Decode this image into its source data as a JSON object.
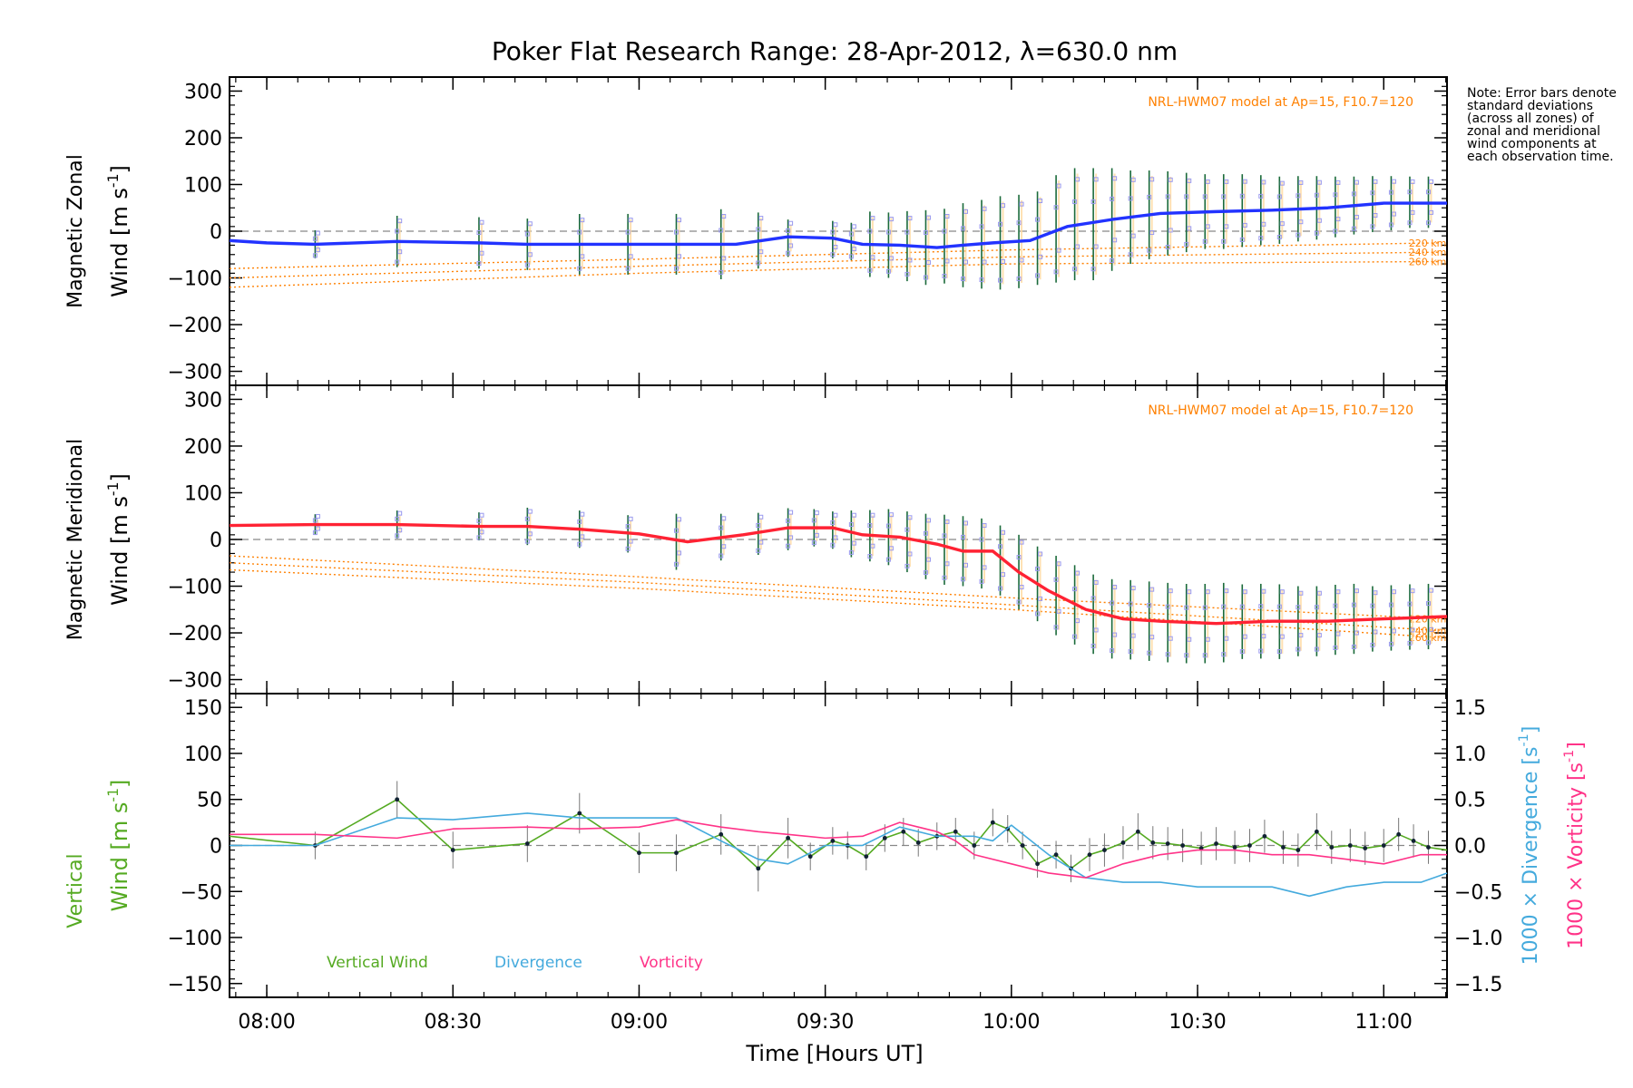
{
  "title": "Poker Flat Research Range: 28-Apr-2012, λ=630.0 nm",
  "note": "Note: Error bars denote standard deviations (across all zones) of zonal and meridional wind components at each observation time.",
  "xlabel": "Time [Hours UT]",
  "colors": {
    "zonal": "#2233ff",
    "meridional": "#ff2233",
    "model": "#ff8000",
    "vertical": "#55aa22",
    "divergence": "#44aadd",
    "vorticity": "#ff3388",
    "errorbar": "#1a6a3a",
    "zones": "#9999ee",
    "zones_fill": "#ffd9a0",
    "zero": "#888888"
  },
  "chart_data": [
    {
      "type": "line",
      "name": "zonal",
      "ylabel1": "Magnetic Zonal",
      "ylabel2": "Wind [m s",
      "ylabel_sup": "-1",
      "ylabel_close": "]",
      "ylim": [
        -330,
        330
      ],
      "yticks": [
        -300,
        -200,
        -100,
        0,
        100,
        200,
        300
      ],
      "xticks": [
        "08:00",
        "08:30",
        "09:00",
        "09:30",
        "10:00",
        "10:30",
        "11:00"
      ],
      "xtick_hours": [
        8.0,
        8.5,
        9.0,
        9.5,
        10.0,
        10.5,
        11.0
      ],
      "xlim": [
        7.9,
        11.17
      ],
      "model_label": "NRL-HWM07 model at Ap=15, F10.7=120",
      "model_series": [
        {
          "label": "220 km",
          "x": [
            7.9,
            9.0,
            10.0,
            11.15
          ],
          "y": [
            -80,
            -60,
            -40,
            -25
          ]
        },
        {
          "label": "240 km",
          "x": [
            7.9,
            9.0,
            10.0,
            11.15
          ],
          "y": [
            -100,
            -75,
            -55,
            -45
          ]
        },
        {
          "label": "260 km",
          "x": [
            7.9,
            9.0,
            10.0,
            11.15
          ],
          "y": [
            -120,
            -90,
            -70,
            -65
          ]
        }
      ],
      "mean": {
        "x": [
          7.9,
          8.0,
          8.13,
          8.35,
          8.57,
          8.7,
          8.84,
          9.0,
          9.15,
          9.26,
          9.4,
          9.52,
          9.6,
          9.7,
          9.8,
          9.87,
          9.95,
          10.05,
          10.15,
          10.27,
          10.4,
          10.55,
          10.7,
          10.85,
          11.0,
          11.17
        ],
        "y": [
          -20,
          -25,
          -28,
          -22,
          -25,
          -28,
          -28,
          -28,
          -28,
          -28,
          -12,
          -15,
          -28,
          -30,
          -35,
          -30,
          -25,
          -20,
          10,
          25,
          38,
          42,
          45,
          50,
          60,
          60
        ]
      },
      "errorbars": {
        "x": [
          8.13,
          8.35,
          8.57,
          8.7,
          8.84,
          8.97,
          9.1,
          9.22,
          9.32,
          9.4,
          9.52,
          9.57,
          9.62,
          9.67,
          9.72,
          9.77,
          9.82,
          9.87,
          9.92,
          9.97,
          10.02,
          10.07,
          10.12,
          10.17,
          10.22,
          10.27,
          10.32,
          10.37,
          10.42,
          10.47,
          10.52,
          10.57,
          10.62,
          10.67,
          10.72,
          10.77,
          10.82,
          10.87,
          10.92,
          10.97,
          11.02,
          11.07,
          11.12
        ],
        "y": [
          -28,
          -22,
          -25,
          -28,
          -28,
          -28,
          -28,
          -28,
          -20,
          -15,
          -18,
          -22,
          -28,
          -30,
          -32,
          -35,
          -32,
          -30,
          -28,
          -25,
          -22,
          -15,
          5,
          15,
          15,
          25,
          30,
          35,
          38,
          40,
          42,
          42,
          44,
          45,
          45,
          48,
          50,
          52,
          55,
          58,
          60,
          62,
          62
        ],
        "err": [
          30,
          55,
          55,
          55,
          65,
          65,
          65,
          75,
          60,
          40,
          40,
          40,
          70,
          70,
          75,
          80,
          80,
          90,
          95,
          100,
          100,
          100,
          115,
          120,
          120,
          110,
          100,
          95,
          90,
          85,
          80,
          80,
          78,
          75,
          72,
          70,
          68,
          65,
          62,
          60,
          58,
          55,
          55
        ]
      }
    },
    {
      "type": "line",
      "name": "meridional",
      "ylabel1": "Magnetic Meridional",
      "ylabel2": "Wind [m s",
      "ylabel_sup": "-1",
      "ylabel_close": "]",
      "ylim": [
        -330,
        330
      ],
      "yticks": [
        -300,
        -200,
        -100,
        0,
        100,
        200,
        300
      ],
      "model_label": "NRL-HWM07 model at Ap=15, F10.7=120",
      "model_series": [
        {
          "label": "220 km",
          "x": [
            7.9,
            9.0,
            10.0,
            11.15
          ],
          "y": [
            -35,
            -80,
            -125,
            -170
          ]
        },
        {
          "label": "240 km",
          "x": [
            7.9,
            9.0,
            10.0,
            11.15
          ],
          "y": [
            -50,
            -92,
            -140,
            -195
          ]
        },
        {
          "label": "260 km",
          "x": [
            7.9,
            9.0,
            10.0,
            11.15
          ],
          "y": [
            -65,
            -105,
            -150,
            -210
          ]
        }
      ],
      "mean": {
        "x": [
          7.9,
          8.13,
          8.35,
          8.57,
          8.7,
          8.84,
          9.0,
          9.13,
          9.28,
          9.4,
          9.52,
          9.6,
          9.7,
          9.8,
          9.87,
          9.95,
          10.02,
          10.1,
          10.2,
          10.3,
          10.4,
          10.55,
          10.7,
          10.85,
          11.0,
          11.17
        ],
        "y": [
          30,
          32,
          32,
          28,
          28,
          22,
          12,
          -5,
          10,
          25,
          25,
          10,
          5,
          -10,
          -25,
          -25,
          -70,
          -110,
          -150,
          -170,
          -175,
          -180,
          -175,
          -175,
          -170,
          -165
        ]
      },
      "errorbars": {
        "x": [
          8.13,
          8.35,
          8.57,
          8.7,
          8.84,
          8.97,
          9.1,
          9.22,
          9.32,
          9.4,
          9.47,
          9.52,
          9.57,
          9.62,
          9.67,
          9.72,
          9.77,
          9.82,
          9.87,
          9.92,
          9.97,
          10.02,
          10.07,
          10.12,
          10.17,
          10.22,
          10.27,
          10.32,
          10.37,
          10.42,
          10.47,
          10.52,
          10.57,
          10.62,
          10.67,
          10.72,
          10.77,
          10.82,
          10.87,
          10.92,
          10.97,
          11.02,
          11.07,
          11.12
        ],
        "y": [
          32,
          32,
          28,
          28,
          22,
          12,
          -5,
          5,
          12,
          22,
          25,
          20,
          12,
          8,
          5,
          -5,
          -15,
          -22,
          -25,
          -30,
          -45,
          -70,
          -95,
          -120,
          -140,
          -160,
          -170,
          -172,
          -175,
          -178,
          -180,
          -180,
          -178,
          -176,
          -175,
          -176,
          -175,
          -175,
          -172,
          -170,
          -170,
          -168,
          -166,
          -165
        ],
        "err": [
          22,
          30,
          30,
          40,
          40,
          40,
          60,
          50,
          45,
          45,
          40,
          40,
          50,
          55,
          60,
          65,
          70,
          75,
          75,
          75,
          75,
          80,
          80,
          85,
          85,
          85,
          85,
          85,
          85,
          85,
          85,
          85,
          85,
          80,
          80,
          80,
          75,
          75,
          75,
          75,
          70,
          70,
          70,
          70
        ]
      }
    },
    {
      "type": "line",
      "name": "vertical",
      "ylabel1": "Vertical",
      "ylabel2": "Wind [m s",
      "ylabel_sup": "-1",
      "ylabel_close": "]",
      "ylim": [
        -165,
        165
      ],
      "yticks": [
        -150,
        -100,
        -50,
        0,
        50,
        100,
        150
      ],
      "y2lim": [
        -1.65,
        1.65
      ],
      "y2ticks": [
        -1.5,
        -1.0,
        -0.5,
        0.0,
        0.5,
        1.0,
        1.5
      ],
      "y2ticklabels": [
        "−1.5",
        "−1.0",
        "−0.5",
        "0.0",
        "0.5",
        "1.0",
        "1.5"
      ],
      "y2label_div": "1000 × Divergence [s",
      "y2label_vor": "1000 × Vorticity [s",
      "y2label_sup": "-1",
      "y2label_close": "]",
      "legend": [
        {
          "label": "Vertical Wind",
          "color_key": "vertical"
        },
        {
          "label": "Divergence",
          "color_key": "divergence"
        },
        {
          "label": "Vorticity",
          "color_key": "vorticity"
        }
      ],
      "series": [
        {
          "name": "Vertical Wind",
          "color_key": "vertical",
          "axis": "left",
          "x": [
            7.9,
            8.13,
            8.35,
            8.5,
            8.7,
            8.84,
            9.0,
            9.1,
            9.22,
            9.32,
            9.4,
            9.46,
            9.52,
            9.56,
            9.61,
            9.66,
            9.71,
            9.75,
            9.8,
            9.85,
            9.9,
            9.95,
            9.99,
            10.03,
            10.07,
            10.12,
            10.16,
            10.21,
            10.25,
            10.3,
            10.34,
            10.38,
            10.42,
            10.46,
            10.51,
            10.55,
            10.6,
            10.64,
            10.68,
            10.73,
            10.77,
            10.82,
            10.86,
            10.91,
            10.95,
            11.0,
            11.04,
            11.08,
            11.12,
            11.17
          ],
          "y": [
            10,
            0,
            50,
            -5,
            2,
            35,
            -8,
            -8,
            12,
            -25,
            8,
            -12,
            5,
            0,
            -12,
            8,
            15,
            3,
            10,
            15,
            0,
            25,
            18,
            0,
            -20,
            -10,
            -25,
            -10,
            -5,
            3,
            15,
            3,
            2,
            0,
            -3,
            2,
            -2,
            0,
            10,
            -2,
            -5,
            15,
            -2,
            0,
            -3,
            0,
            12,
            5,
            -2,
            -5
          ],
          "err": [
            0,
            15,
            20,
            20,
            20,
            22,
            22,
            20,
            22,
            25,
            22,
            15,
            15,
            15,
            15,
            15,
            15,
            15,
            15,
            15,
            15,
            15,
            15,
            15,
            15,
            15,
            15,
            18,
            18,
            18,
            20,
            18,
            18,
            18,
            18,
            18,
            18,
            18,
            18,
            18,
            18,
            20,
            18,
            18,
            18,
            18,
            18,
            18,
            18,
            0
          ]
        },
        {
          "name": "Divergence",
          "color_key": "divergence",
          "axis": "right",
          "x": [
            7.9,
            8.13,
            8.35,
            8.5,
            8.7,
            8.84,
            9.0,
            9.1,
            9.22,
            9.32,
            9.4,
            9.5,
            9.6,
            9.7,
            9.8,
            9.9,
            9.95,
            10.0,
            10.1,
            10.2,
            10.3,
            10.4,
            10.5,
            10.6,
            10.7,
            10.8,
            10.9,
            11.0,
            11.1,
            11.17
          ],
          "y": [
            0.0,
            0.0,
            0.3,
            0.28,
            0.35,
            0.3,
            0.3,
            0.3,
            0.05,
            -0.15,
            -0.2,
            0.0,
            0.0,
            0.2,
            0.1,
            0.1,
            0.05,
            0.22,
            -0.1,
            -0.35,
            -0.4,
            -0.4,
            -0.45,
            -0.45,
            -0.45,
            -0.55,
            -0.45,
            -0.4,
            -0.4,
            -0.3
          ]
        },
        {
          "name": "Vorticity",
          "color_key": "vorticity",
          "axis": "right",
          "x": [
            7.9,
            8.13,
            8.35,
            8.5,
            8.7,
            8.84,
            9.0,
            9.1,
            9.22,
            9.32,
            9.4,
            9.5,
            9.6,
            9.7,
            9.8,
            9.85,
            9.9,
            10.0,
            10.1,
            10.2,
            10.3,
            10.4,
            10.5,
            10.6,
            10.7,
            10.8,
            10.9,
            11.0,
            11.1,
            11.17
          ],
          "y": [
            0.12,
            0.12,
            0.08,
            0.18,
            0.2,
            0.18,
            0.2,
            0.28,
            0.2,
            0.15,
            0.12,
            0.08,
            0.1,
            0.25,
            0.15,
            0.05,
            -0.1,
            -0.2,
            -0.3,
            -0.35,
            -0.2,
            -0.1,
            -0.05,
            -0.05,
            -0.1,
            -0.1,
            -0.15,
            -0.2,
            -0.1,
            -0.1
          ]
        }
      ]
    }
  ]
}
